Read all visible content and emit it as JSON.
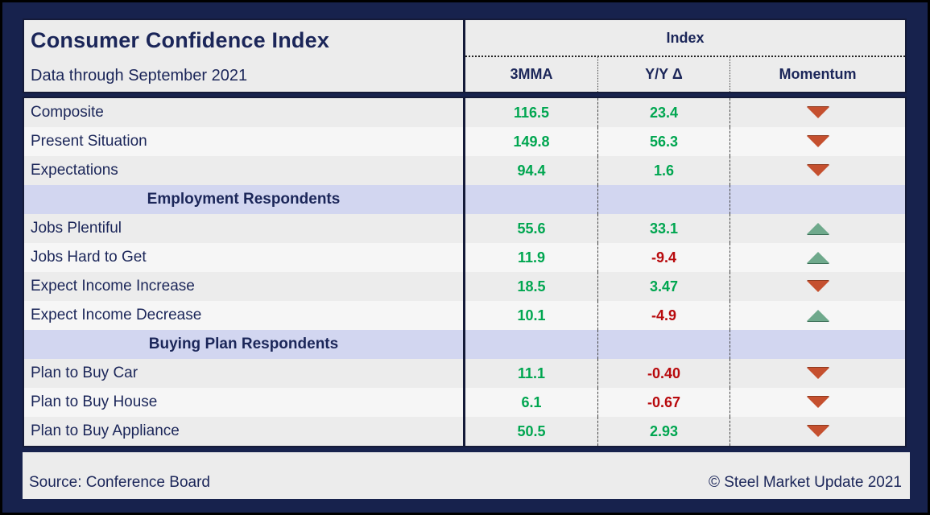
{
  "palette": {
    "navy_bg": "#17224d",
    "frame": "#141a38",
    "navy_text": "#1b2659",
    "row_gray": "#ececec",
    "row_light": "#f6f6f6",
    "band": "#d2d6f0",
    "green": "#00a650",
    "red": "#b80a0d",
    "arrow_up": "#6fa98c",
    "arrow_down": "#c5502f"
  },
  "header": {
    "title": "Consumer Confidence Index",
    "subtitle": "Data through September 2021",
    "index_label": "Index",
    "columns": [
      "3MMA",
      "Y/Y Δ",
      "Momentum"
    ]
  },
  "table": {
    "rows": [
      {
        "type": "data",
        "label": "Composite",
        "mma": "116.5",
        "yoy": "23.4",
        "momentum": "down"
      },
      {
        "type": "data",
        "label": "Present Situation",
        "mma": "149.8",
        "yoy": "56.3",
        "momentum": "down"
      },
      {
        "type": "data",
        "label": "Expectations",
        "mma": "94.4",
        "yoy": "1.6",
        "momentum": "down"
      },
      {
        "type": "section",
        "label": "Employment Respondents"
      },
      {
        "type": "data",
        "label": "Jobs Plentiful",
        "mma": "55.6",
        "yoy": "33.1",
        "momentum": "up"
      },
      {
        "type": "data",
        "label": "Jobs Hard to Get",
        "mma": "11.9",
        "yoy": "-9.4",
        "momentum": "up"
      },
      {
        "type": "data",
        "label": "Expect Income Increase",
        "mma": "18.5",
        "yoy": "3.47",
        "momentum": "down"
      },
      {
        "type": "data",
        "label": "Expect Income Decrease",
        "mma": "10.1",
        "yoy": "-4.9",
        "momentum": "up"
      },
      {
        "type": "section",
        "label": "Buying Plan Respondents"
      },
      {
        "type": "data",
        "label": "Plan to Buy Car",
        "mma": "11.1",
        "yoy": "-0.40",
        "momentum": "down"
      },
      {
        "type": "data",
        "label": "Plan to Buy House",
        "mma": "6.1",
        "yoy": "-0.67",
        "momentum": "down"
      },
      {
        "type": "data",
        "label": "Plan to Buy Appliance",
        "mma": "50.5",
        "yoy": "2.93",
        "momentum": "down"
      }
    ]
  },
  "footer": {
    "source": "Source: Conference Board",
    "copyright": "© Steel Market Update 2021"
  },
  "chart_data": {
    "type": "table",
    "title": "Consumer Confidence Index",
    "subtitle": "Data through September 2021",
    "column_group": "Index",
    "columns": [
      "3MMA",
      "Y/Y Δ",
      "Momentum"
    ],
    "rows": [
      {
        "label": "Composite",
        "mma_3": 116.5,
        "yoy_delta": 23.4,
        "momentum": "down"
      },
      {
        "label": "Present Situation",
        "mma_3": 149.8,
        "yoy_delta": 56.3,
        "momentum": "down"
      },
      {
        "label": "Expectations",
        "mma_3": 94.4,
        "yoy_delta": 1.6,
        "momentum": "down"
      },
      {
        "section": "Employment Respondents"
      },
      {
        "label": "Jobs Plentiful",
        "mma_3": 55.6,
        "yoy_delta": 33.1,
        "momentum": "up"
      },
      {
        "label": "Jobs Hard to Get",
        "mma_3": 11.9,
        "yoy_delta": -9.4,
        "momentum": "up"
      },
      {
        "label": "Expect Income Increase",
        "mma_3": 18.5,
        "yoy_delta": 3.47,
        "momentum": "down"
      },
      {
        "label": "Expect Income Decrease",
        "mma_3": 10.1,
        "yoy_delta": -4.9,
        "momentum": "up"
      },
      {
        "section": "Buying Plan Respondents"
      },
      {
        "label": "Plan to Buy Car",
        "mma_3": 11.1,
        "yoy_delta": -0.4,
        "momentum": "down"
      },
      {
        "label": "Plan to Buy House",
        "mma_3": 6.1,
        "yoy_delta": -0.67,
        "momentum": "down"
      },
      {
        "label": "Plan to Buy Appliance",
        "mma_3": 50.5,
        "yoy_delta": 2.93,
        "momentum": "down"
      }
    ],
    "value_color_rule": "negative values red, positive values green",
    "source": "Conference Board",
    "copyright": "© Steel Market Update 2021"
  }
}
